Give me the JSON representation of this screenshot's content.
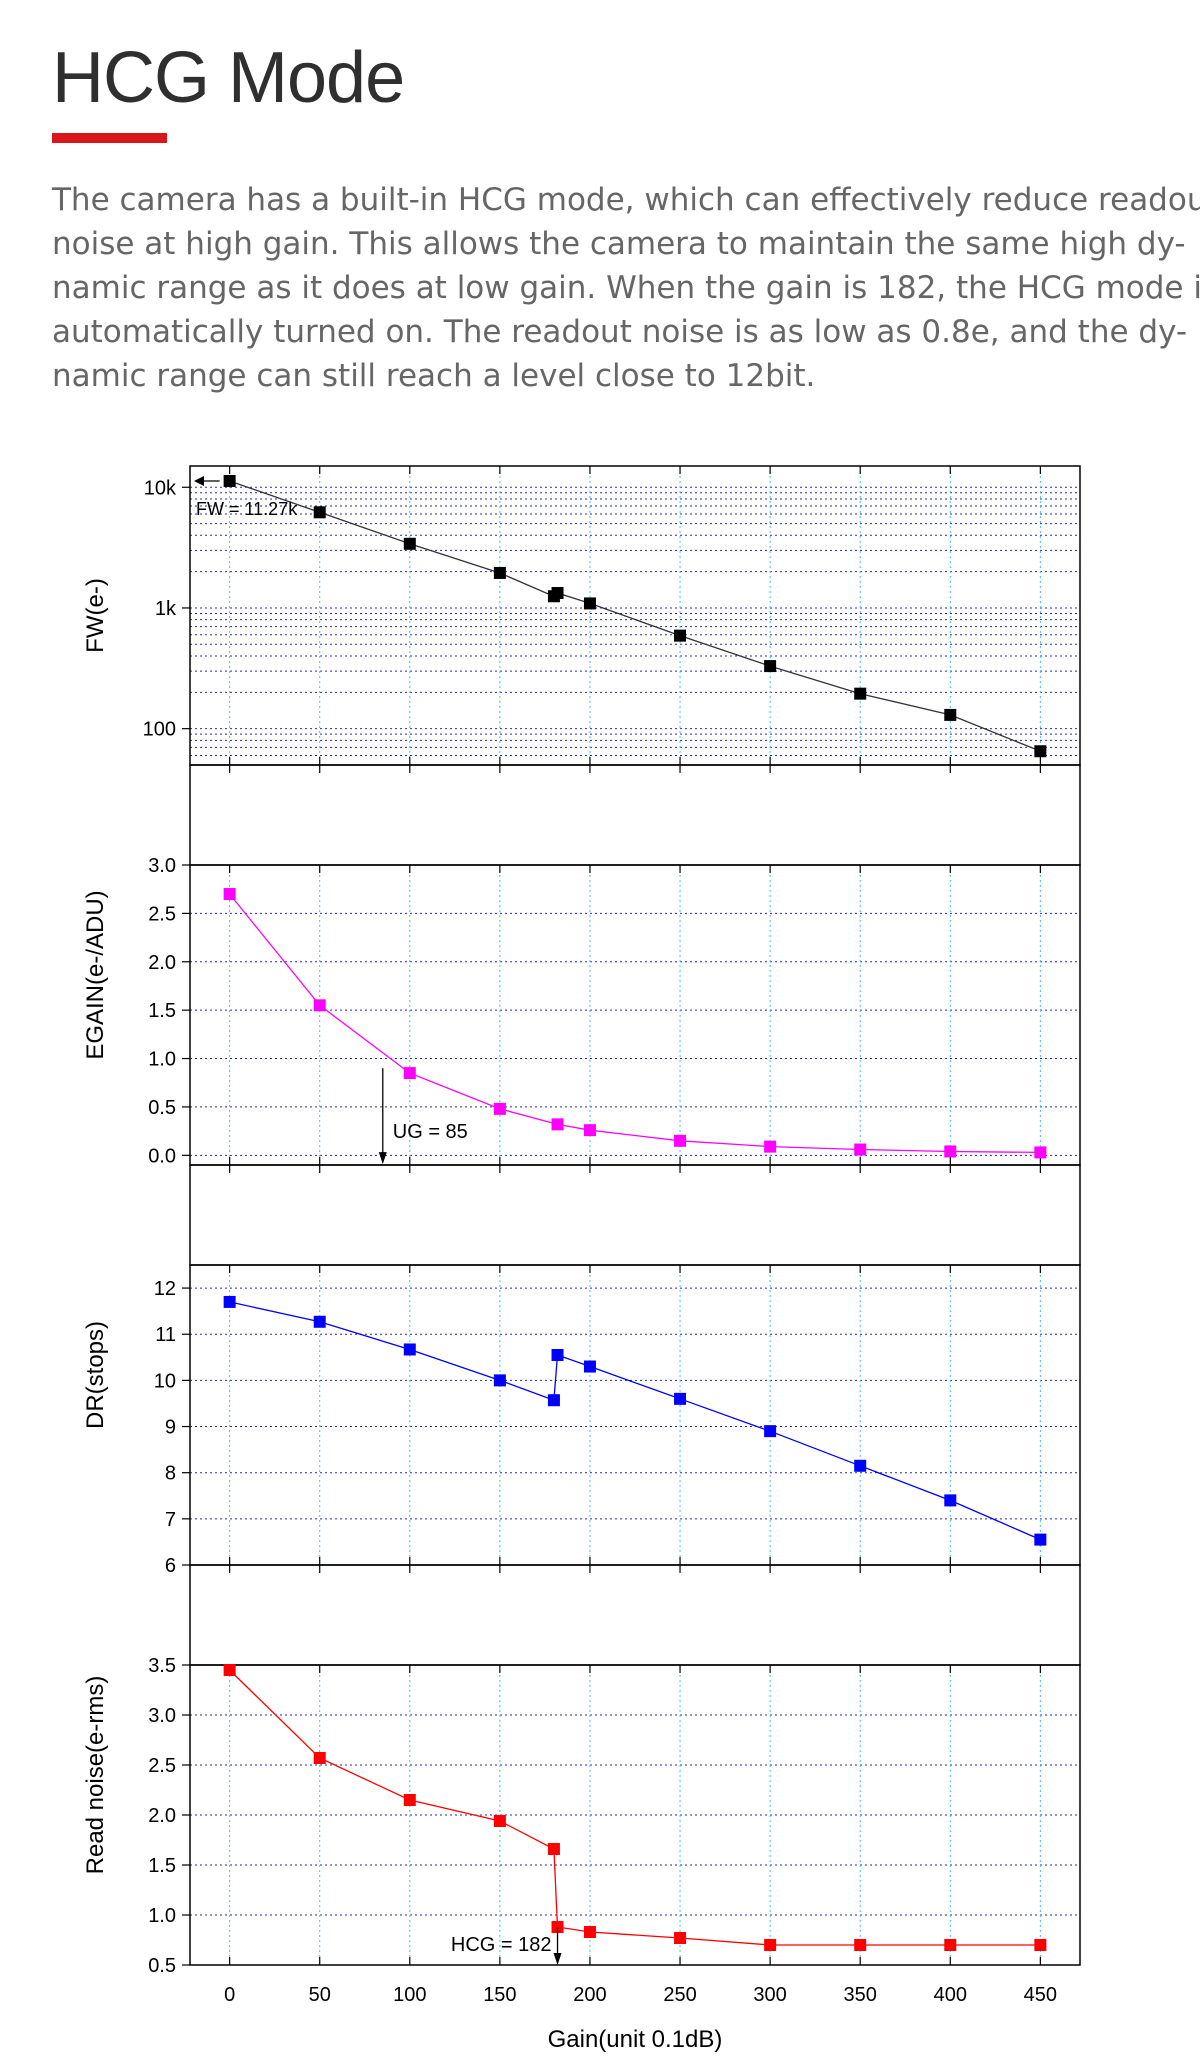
{
  "header": {
    "title": "HCG Mode",
    "accent_color": "#d9161c"
  },
  "description": {
    "lines": [
      "The camera has a built-in HCG mode, which can effectively reduce readout",
      "noise at high gain.  This allows the camera to maintain the same high dy-",
      "namic range as it does at low gain. When the gain is 182, the HCG mode is",
      "automatically turned on. The readout noise is as low as 0.8e, and the dy-",
      "namic range can still reach a level close to 12bit."
    ]
  },
  "chart_data": [
    {
      "type": "line",
      "scale": "log",
      "ylabel": "FW(e-)",
      "color": "#000000",
      "ylim": [
        50,
        15000
      ],
      "yticks": [
        100,
        1000,
        10000
      ],
      "ytick_labels": [
        "100",
        "1k",
        "10k"
      ],
      "x": [
        0,
        50,
        100,
        150,
        180,
        182,
        200,
        250,
        300,
        350,
        400,
        450
      ],
      "values": [
        11270,
        6200,
        3400,
        1950,
        1250,
        1330,
        1090,
        590,
        330,
        195,
        130,
        65
      ],
      "annotation": {
        "text": "FW = 11.27k",
        "x": 0,
        "y": 11270
      }
    },
    {
      "type": "line",
      "scale": "linear",
      "ylabel": "EGAIN(e-/ADU)",
      "color": "#ff00ff",
      "ylim": [
        -0.1,
        3.0
      ],
      "yticks": [
        0.0,
        0.5,
        1.0,
        1.5,
        2.0,
        2.5,
        3.0
      ],
      "ytick_labels": [
        "0.0",
        "0.5",
        "1.0",
        "1.5",
        "2.0",
        "2.5",
        "3.0"
      ],
      "x": [
        0,
        50,
        100,
        150,
        182,
        200,
        250,
        300,
        350,
        400,
        450
      ],
      "values": [
        2.7,
        1.55,
        0.85,
        0.48,
        0.32,
        0.26,
        0.15,
        0.09,
        0.06,
        0.04,
        0.03
      ],
      "annotation": {
        "text": "UG = 85",
        "x": 85,
        "y": 0.9
      }
    },
    {
      "type": "line",
      "scale": "linear",
      "ylabel": "DR(stops)",
      "color": "#0000ff",
      "ylim": [
        6,
        12.5
      ],
      "yticks": [
        6,
        7,
        8,
        9,
        10,
        11,
        12
      ],
      "ytick_labels": [
        "6",
        "7",
        "8",
        "9",
        "10",
        "11",
        "12"
      ],
      "x": [
        0,
        50,
        100,
        150,
        180,
        182,
        200,
        250,
        300,
        350,
        400,
        450
      ],
      "values": [
        11.7,
        11.27,
        10.67,
        10.0,
        9.57,
        10.55,
        10.3,
        9.6,
        8.9,
        8.15,
        7.4,
        6.55
      ]
    },
    {
      "type": "line",
      "scale": "linear",
      "ylabel": "Read noise(e-rms)",
      "color": "#ff0000",
      "ylim": [
        0.5,
        3.5
      ],
      "yticks": [
        0.5,
        1.0,
        1.5,
        2.0,
        2.5,
        3.0,
        3.5
      ],
      "ytick_labels": [
        "0.5",
        "1.0",
        "1.5",
        "2.0",
        "2.5",
        "3.0",
        "3.5"
      ],
      "x": [
        0,
        50,
        100,
        150,
        180,
        182,
        200,
        250,
        300,
        350,
        400,
        450
      ],
      "values": [
        3.45,
        2.57,
        2.15,
        1.94,
        1.66,
        0.88,
        0.83,
        0.77,
        0.7,
        0.7,
        0.7,
        0.7
      ],
      "annotation": {
        "text": "HCG = 182",
        "x": 182,
        "y": 0.88
      }
    }
  ],
  "x_axis": {
    "label": "Gain(unit 0.1dB)",
    "xlim": [
      -22,
      472
    ],
    "ticks": [
      0,
      50,
      100,
      150,
      200,
      250,
      300,
      350,
      400,
      450
    ],
    "tick_labels": [
      "0",
      "50",
      "100",
      "150",
      "200",
      "250",
      "300",
      "350",
      "400",
      "450"
    ]
  }
}
